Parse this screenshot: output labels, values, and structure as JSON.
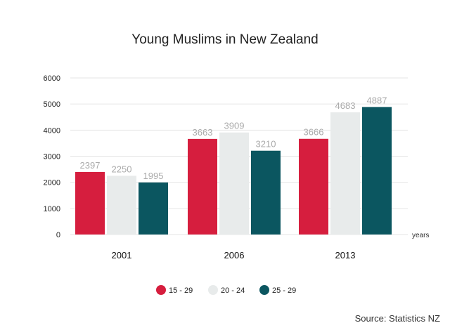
{
  "chart_data": {
    "type": "bar",
    "title": "Young Muslims in New Zealand",
    "categories": [
      "2001",
      "2006",
      "2013"
    ],
    "series": [
      {
        "name": "15 - 29",
        "color": "#d61e3e",
        "values": [
          2397,
          3663,
          3666
        ]
      },
      {
        "name": "20 - 24",
        "color": "#e8ebeb",
        "values": [
          2250,
          3909,
          4683
        ]
      },
      {
        "name": "25 - 29",
        "color": "#0b5660",
        "values": [
          1995,
          3210,
          4887
        ]
      }
    ],
    "xlabel": "years",
    "ylabel": "",
    "ylim": [
      0,
      6000
    ],
    "yticks": [
      0,
      1000,
      2000,
      3000,
      4000,
      5000,
      6000
    ],
    "grid": true,
    "legend": "bottom",
    "source": "Source: Statistics NZ"
  }
}
